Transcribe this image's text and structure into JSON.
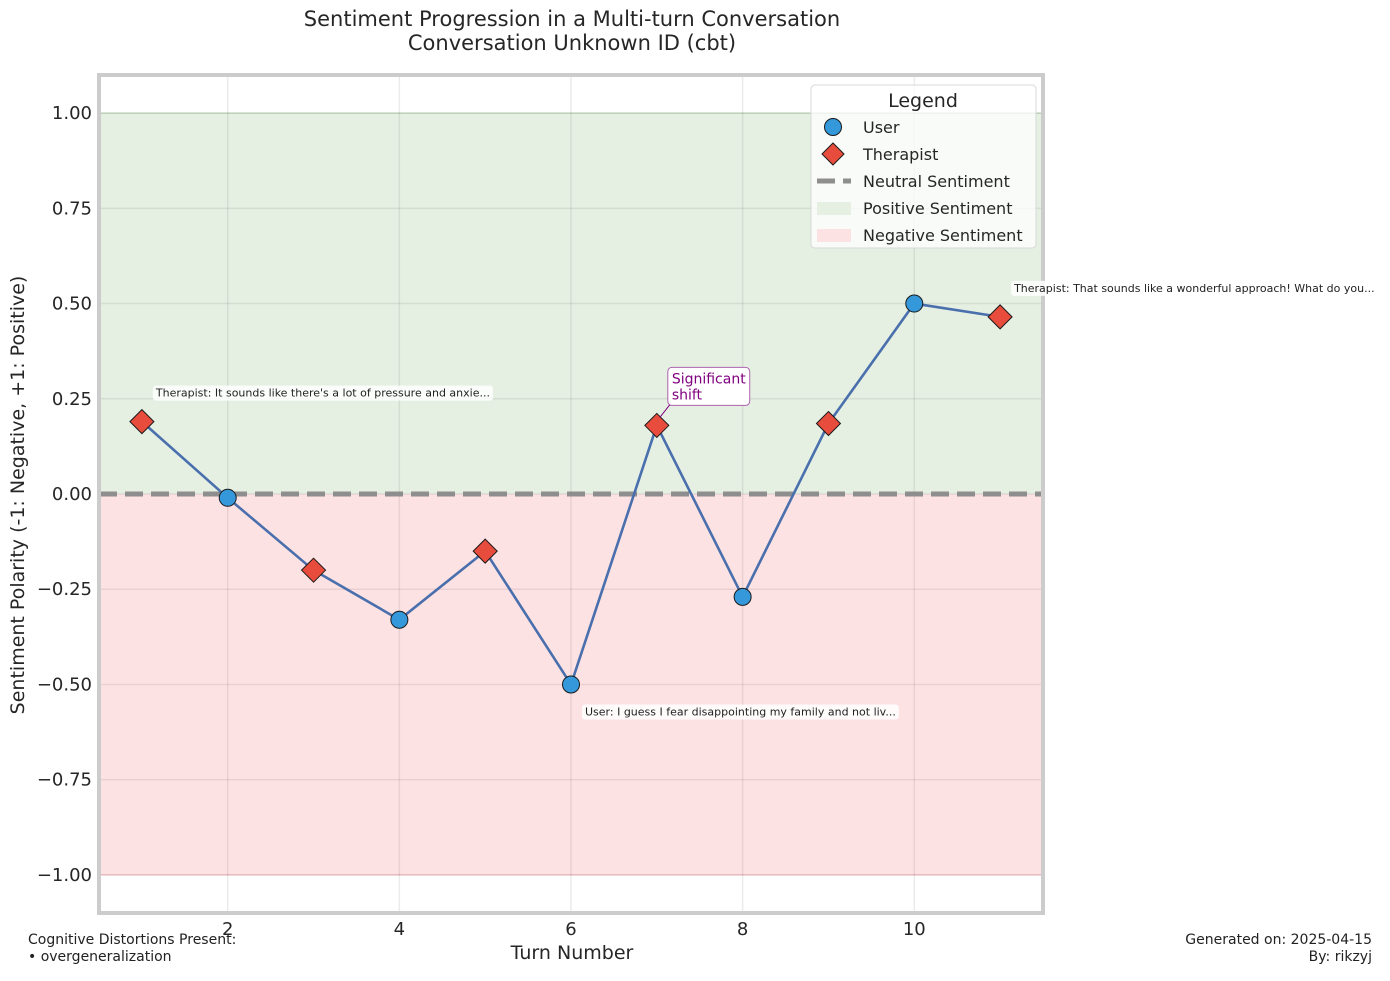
{
  "chart_data": {
    "type": "line",
    "title": "Sentiment Progression in a Multi-turn Conversation",
    "subtitle": "Conversation Unknown ID (cbt)",
    "xlabel": "Turn Number",
    "ylabel": "Sentiment Polarity (-1: Negative, +1: Positive)",
    "xlim": [
      0.5,
      11.5
    ],
    "ylim": [
      -1.1,
      1.1
    ],
    "x_ticks": [
      2,
      4,
      6,
      8,
      10
    ],
    "x_tick_labels": [
      "2",
      "4",
      "6",
      "8",
      "10"
    ],
    "y_ticks": [
      1.0,
      0.75,
      0.5,
      0.25,
      0.0,
      -0.25,
      -0.5,
      -0.75,
      -1.0
    ],
    "y_tick_labels": [
      "1.00",
      "0.75",
      "0.50",
      "0.25",
      "0.00",
      "−0.25",
      "−0.50",
      "−0.75",
      "−1.00"
    ],
    "grid": true,
    "legend_placement": "top-right",
    "series": [
      {
        "name": "User",
        "marker": "circle",
        "color": "#3498db",
        "points": [
          [
            2,
            -0.01
          ],
          [
            4,
            -0.33
          ],
          [
            6,
            -0.5
          ],
          [
            8,
            -0.27
          ],
          [
            10,
            0.5
          ]
        ]
      },
      {
        "name": "Therapist",
        "marker": "diamond",
        "color": "#e74c3c",
        "points": [
          [
            1,
            0.19
          ],
          [
            3,
            -0.2
          ],
          [
            5,
            -0.15
          ],
          [
            7,
            0.18
          ],
          [
            9,
            0.185
          ],
          [
            11,
            0.465
          ]
        ]
      }
    ],
    "line": {
      "color": "#4a6fad",
      "x": [
        1,
        2,
        3,
        4,
        5,
        6,
        7,
        8,
        9,
        10,
        11
      ],
      "y": [
        0.19,
        -0.01,
        -0.2,
        -0.33,
        -0.15,
        -0.5,
        0.18,
        -0.27,
        0.185,
        0.5,
        0.465
      ]
    },
    "neutral_line": {
      "name": "Neutral Sentiment",
      "y": 0,
      "color": "#8e8e8e"
    },
    "regions": [
      {
        "name": "Positive Sentiment",
        "y_range": [
          0,
          1
        ],
        "color": "#e5f0e3"
      },
      {
        "name": "Negative Sentiment",
        "y_range": [
          -1,
          0
        ],
        "color": "#fde2e4"
      }
    ],
    "legend": {
      "title": "Legend",
      "entries": [
        "User",
        "Therapist",
        "Neutral Sentiment",
        "Positive Sentiment",
        "Negative Sentiment"
      ]
    },
    "annotations": [
      {
        "x": 1,
        "y": 0.19,
        "text": "Therapist: It sounds like there's a lot of pressure and anxie..."
      },
      {
        "x": 6,
        "y": -0.5,
        "text": "User: I guess I fear disappointing my family and not liv..."
      },
      {
        "x": 11,
        "y": 0.465,
        "text": "Therapist: That sounds like a wonderful approach! What do you..."
      }
    ],
    "shift_annotation": {
      "x": 7,
      "y": 0.18,
      "lines": [
        "Significant",
        "shift"
      ],
      "color": "#800080"
    }
  },
  "footer": {
    "distortions_title": "Cognitive Distortions Present:",
    "distortions": [
      "• overgeneralization"
    ],
    "generated": "Generated on: 2025-04-15",
    "author": "By: rikzyj"
  }
}
